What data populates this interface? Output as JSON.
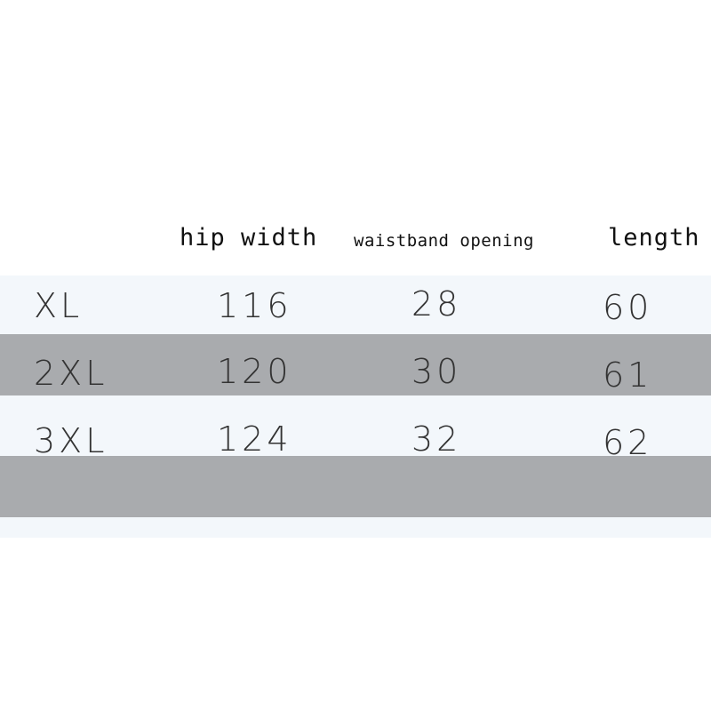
{
  "table": {
    "headers": [
      "",
      "hip width",
      "waistband opening",
      "length"
    ],
    "rows": [
      [
        "XL",
        "116",
        "28",
        "60"
      ],
      [
        "2XL",
        "120",
        "30",
        "61"
      ],
      [
        "3XL",
        "124",
        "32",
        "62"
      ]
    ]
  },
  "colors": {
    "light_band": "#f3f7fb",
    "gray_band": "#a9abae",
    "text": "#333333"
  }
}
